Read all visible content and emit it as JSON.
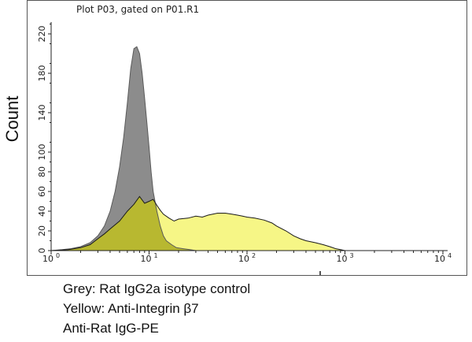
{
  "plot_title": "Plot P03, gated on P01.R1",
  "caption": {
    "line1": "Grey: Rat IgG2a isotype control",
    "line2": "Yellow: Anti-Integrin β7",
    "line3": "Anti-Rat IgG-PE"
  },
  "colors": {
    "grey_fill": "#8c8c8c",
    "grey_stroke": "#5a5a5a",
    "yellow_fill": "#f5f580",
    "yellow_fill_overlap": "#b8b830",
    "yellow_stroke": "#1a1a1a"
  },
  "chart_data": {
    "type": "area",
    "title": "Plot P03, gated on P01.R1",
    "xlabel": "",
    "ylabel": "Count",
    "xscale": "log",
    "xlim": [
      1,
      10000
    ],
    "ylim": [
      0,
      240
    ],
    "x_ticks": [
      {
        "value": 1,
        "base": "10",
        "exp": "0"
      },
      {
        "value": 10,
        "base": "10",
        "exp": "1"
      },
      {
        "value": 100,
        "base": "10",
        "exp": "2"
      },
      {
        "value": 1000,
        "base": "10",
        "exp": "3"
      },
      {
        "value": 10000,
        "base": "10",
        "exp": "4"
      }
    ],
    "y_ticks": [
      0,
      20,
      40,
      60,
      80,
      100,
      140,
      180,
      220
    ],
    "grid": false,
    "series": [
      {
        "color": "#8c8c8c",
        "x": [
          1.0,
          1.3,
          1.6,
          2.0,
          2.5,
          3.0,
          3.5,
          4.0,
          4.5,
          5.0,
          5.5,
          6.0,
          6.5,
          7.0,
          7.5,
          8.0,
          8.5,
          9.0,
          9.5,
          10.0,
          10.5,
          11.0,
          12.0,
          13.0,
          14.0,
          15.0,
          17.0,
          19.0,
          22.0,
          26.0,
          30.0
        ],
        "y": [
          0,
          1,
          2,
          4,
          8,
          15,
          25,
          40,
          60,
          85,
          115,
          150,
          185,
          205,
          207,
          200,
          180,
          155,
          130,
          105,
          80,
          60,
          40,
          25,
          15,
          10,
          6,
          3,
          2,
          1,
          0
        ]
      },
      {
        "color": "#f5f580",
        "x": [
          1.0,
          1.5,
          2.0,
          2.5,
          3.0,
          3.5,
          4.0,
          5.0,
          6.0,
          7.0,
          8.0,
          9.0,
          10.0,
          11.0,
          12.0,
          13.0,
          14.0,
          16.0,
          18.0,
          20.0,
          25.0,
          30.0,
          35.0,
          40.0,
          50.0,
          60.0,
          70.0,
          80.0,
          90.0,
          100.0,
          120.0,
          150.0,
          180.0,
          200.0,
          250.0,
          300.0,
          350.0,
          400.0,
          500.0,
          600.0,
          700.0,
          800.0,
          900.0,
          1000.0,
          1200.0
        ],
        "y": [
          0,
          1,
          3,
          6,
          12,
          17,
          22,
          30,
          40,
          47,
          55,
          48,
          50,
          52,
          46,
          41,
          37,
          33,
          30,
          32,
          33,
          35,
          34,
          36,
          38,
          38,
          37,
          36,
          35,
          34,
          33,
          31,
          28,
          25,
          20,
          15,
          12,
          10,
          8,
          6,
          4,
          2,
          1,
          0,
          0
        ]
      }
    ]
  }
}
